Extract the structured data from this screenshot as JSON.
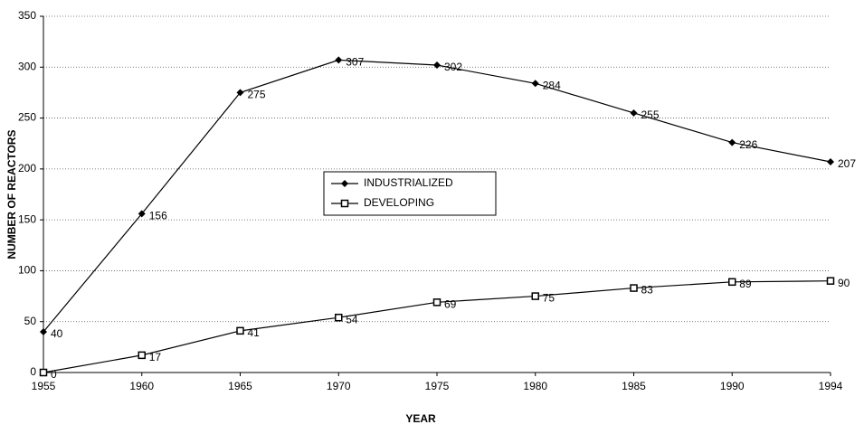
{
  "chart_data": {
    "type": "line",
    "x_label": "YEAR",
    "y_label": "NUMBER OF REACTORS",
    "categories": [
      "1955",
      "1960",
      "1965",
      "1970",
      "1975",
      "1980",
      "1985",
      "1990",
      "1994"
    ],
    "series": [
      {
        "name": "INDUSTRIALIZED",
        "color": "#000000",
        "marker": "diamond",
        "values": [
          40,
          156,
          275,
          307,
          302,
          284,
          255,
          226,
          207
        ]
      },
      {
        "name": "DEVELOPING",
        "color": "#000000",
        "marker": "square",
        "values": [
          0,
          17,
          41,
          54,
          69,
          75,
          83,
          89,
          90
        ]
      }
    ],
    "ylim": [
      0,
      350
    ],
    "yticks": [
      0,
      50,
      100,
      150,
      200,
      250,
      300,
      350
    ],
    "grid": true,
    "data_labels": true,
    "legend": "center"
  }
}
